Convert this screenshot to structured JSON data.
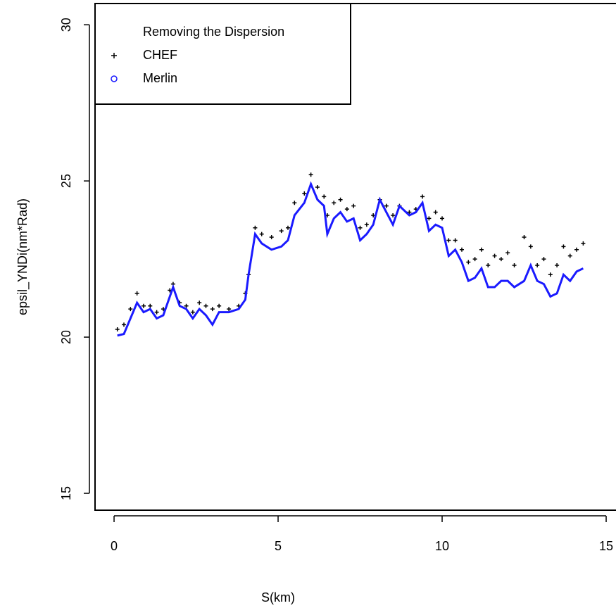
{
  "chart_data": {
    "type": "line",
    "xlabel": "S(km)",
    "ylabel": "epsil_YNDi(nm*Rad)",
    "legend_title": "Removing the Dispersion",
    "legend": "topleft",
    "x": [
      0.1,
      0.3,
      0.5,
      0.7,
      0.9,
      1.1,
      1.3,
      1.5,
      1.7,
      1.8,
      2.0,
      2.2,
      2.4,
      2.6,
      2.8,
      3.0,
      3.2,
      3.5,
      3.8,
      4.0,
      4.1,
      4.3,
      4.5,
      4.8,
      5.1,
      5.3,
      5.5,
      5.8,
      6.0,
      6.2,
      6.4,
      6.5,
      6.7,
      6.9,
      7.1,
      7.3,
      7.5,
      7.7,
      7.9,
      8.1,
      8.3,
      8.5,
      8.7,
      9.0,
      9.2,
      9.4,
      9.6,
      9.8,
      10.0,
      10.2,
      10.4,
      10.6,
      10.8,
      11.0,
      11.2,
      11.4,
      11.6,
      11.8,
      12.0,
      12.2,
      12.5,
      12.7,
      12.9,
      13.1,
      13.3,
      13.5,
      13.7,
      13.9,
      14.1,
      14.3
    ],
    "series": [
      {
        "name": "CHEF",
        "color": "#000000",
        "mode": "points",
        "values": [
          20.25,
          20.4,
          20.9,
          21.4,
          21.0,
          21.0,
          20.8,
          20.9,
          21.5,
          21.7,
          21.1,
          21.0,
          20.8,
          21.1,
          21.0,
          20.9,
          21.0,
          20.9,
          21.0,
          21.4,
          22.0,
          23.5,
          23.3,
          23.2,
          23.4,
          23.5,
          24.3,
          24.6,
          25.2,
          24.8,
          24.5,
          23.9,
          24.3,
          24.4,
          24.1,
          24.2,
          23.5,
          23.6,
          23.9,
          24.4,
          24.2,
          23.9,
          24.2,
          24.0,
          24.1,
          24.5,
          23.8,
          24.0,
          23.8,
          23.1,
          23.1,
          22.8,
          22.4,
          22.5,
          22.8,
          22.3,
          22.6,
          22.5,
          22.7,
          22.3,
          23.2,
          22.9,
          22.3,
          22.5,
          22.0,
          22.3,
          22.9,
          22.6,
          22.8,
          23.0
        ]
      },
      {
        "name": "Merlin",
        "color": "#1a1aff",
        "mode": "line",
        "values": [
          20.05,
          20.1,
          20.6,
          21.1,
          20.8,
          20.9,
          20.6,
          20.7,
          21.3,
          21.6,
          21.0,
          20.9,
          20.6,
          20.9,
          20.7,
          20.4,
          20.8,
          20.8,
          20.9,
          21.2,
          22.0,
          23.3,
          23.0,
          22.8,
          22.9,
          23.1,
          23.9,
          24.3,
          24.9,
          24.4,
          24.2,
          23.3,
          23.8,
          24.0,
          23.7,
          23.8,
          23.1,
          23.3,
          23.6,
          24.4,
          24.0,
          23.6,
          24.2,
          23.9,
          24.0,
          24.3,
          23.4,
          23.6,
          23.5,
          22.6,
          22.8,
          22.4,
          21.8,
          21.9,
          22.2,
          21.6,
          21.6,
          21.8,
          21.8,
          21.6,
          21.8,
          22.3,
          21.8,
          21.7,
          21.3,
          21.4,
          22.0,
          21.8,
          22.1,
          22.2
        ]
      }
    ],
    "xlim": [
      -0.58,
      15.3
    ],
    "ylim": [
      14.46,
      30.68
    ],
    "xticks": [
      0,
      5,
      10,
      15
    ],
    "yticks": [
      15,
      20,
      25,
      30
    ]
  }
}
